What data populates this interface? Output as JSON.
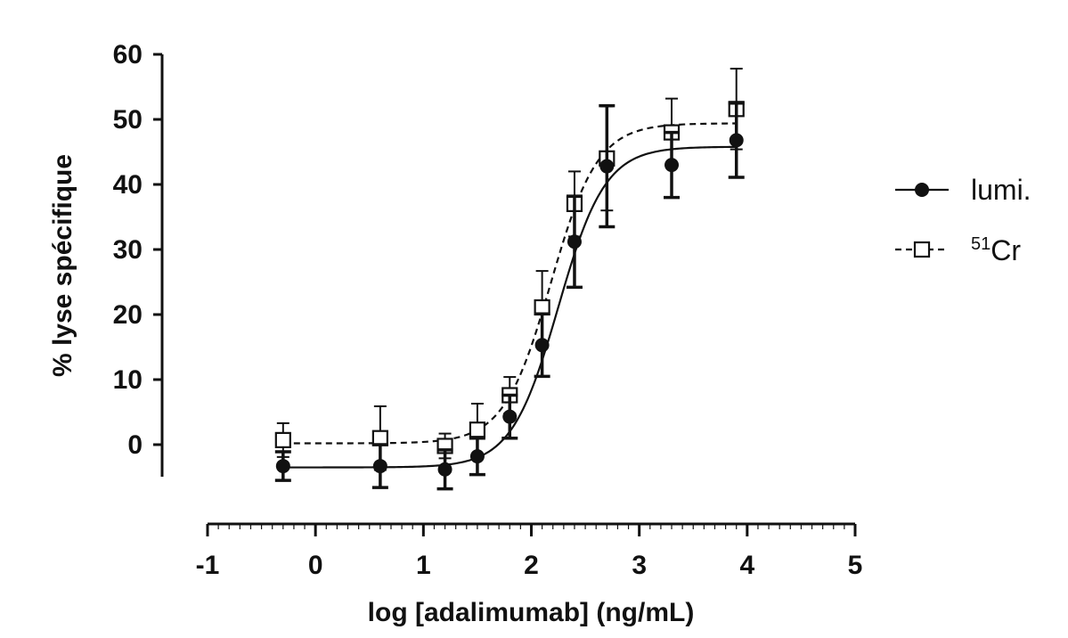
{
  "chart_data": {
    "type": "scatter",
    "xlabel": "log [adalimumab] (ng/mL)",
    "ylabel": "% lyse spécifique",
    "xlim": [
      -1,
      5
    ],
    "ylim": [
      -5,
      60
    ],
    "x_ticks": [
      "-1",
      "0",
      "1",
      "2",
      "3",
      "4",
      "5"
    ],
    "y_ticks": [
      "0",
      "10",
      "20",
      "30",
      "40",
      "50",
      "60"
    ],
    "grid": false,
    "legend_position": "right",
    "series": [
      {
        "name": "lumi.",
        "marker": "filled-circle",
        "line": "solid",
        "color": "#111111",
        "x": [
          -0.3,
          0.6,
          1.2,
          1.5,
          1.8,
          2.1,
          2.4,
          2.7,
          3.3,
          3.9
        ],
        "y": [
          -3.3,
          -3.3,
          -3.8,
          -1.8,
          4.3,
          15.3,
          31.2,
          42.8,
          43.0,
          46.8
        ],
        "err": [
          2.2,
          3.3,
          3.0,
          2.8,
          3.3,
          4.8,
          7.0,
          9.3,
          5.0,
          5.7
        ],
        "fit": {
          "bottom": -3.5,
          "top": 45.8,
          "log_ec50": 2.25,
          "hill": 2.0
        }
      },
      {
        "name": "51Cr",
        "legend_sup": "51",
        "legend_main": "Cr",
        "marker": "open-square",
        "line": "dashed",
        "color": "#111111",
        "x": [
          -0.3,
          0.6,
          1.2,
          1.5,
          1.8,
          2.1,
          2.4,
          2.7,
          3.3,
          3.9
        ],
        "y": [
          0.7,
          1.0,
          -0.2,
          2.3,
          7.6,
          21.1,
          37.0,
          44.0,
          48.0,
          51.6
        ],
        "err": [
          2.6,
          4.9,
          1.9,
          4.0,
          2.8,
          5.6,
          5.0,
          8.0,
          5.2,
          6.2
        ],
        "fit": {
          "bottom": 0.2,
          "top": 49.4,
          "log_ec50": 2.18,
          "hill": 2.0
        }
      }
    ]
  }
}
